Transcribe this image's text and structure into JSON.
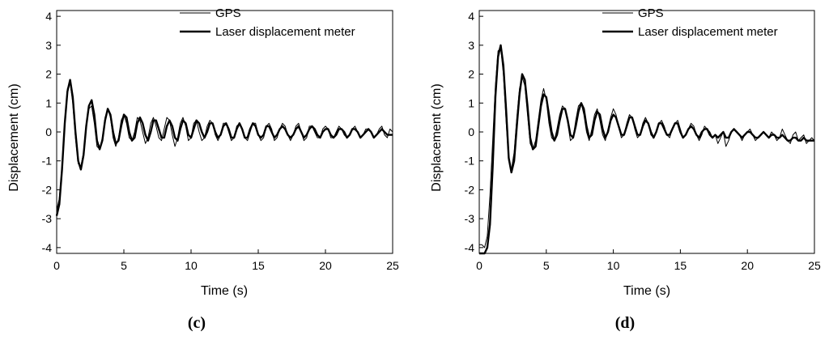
{
  "chart_data": [
    {
      "type": "line",
      "panel_label": "(c)",
      "xlabel": "Time (s)",
      "ylabel": "Displacement (cm)",
      "xlim": [
        0,
        25
      ],
      "ylim": [
        -4.2,
        4.2
      ],
      "xticks": [
        0,
        5,
        10,
        15,
        20,
        25
      ],
      "yticks": [
        -4,
        -3,
        -2,
        -1,
        0,
        1,
        2,
        3,
        4
      ],
      "grid": false,
      "legend_position": "top-right",
      "series": [
        {
          "name": "GPS",
          "style": "thin",
          "x": [
            0,
            0.2,
            0.4,
            0.6,
            0.8,
            1.0,
            1.2,
            1.4,
            1.6,
            1.8,
            2.0,
            2.2,
            2.4,
            2.6,
            2.8,
            3.0,
            3.2,
            3.4,
            3.6,
            3.8,
            4.0,
            4.2,
            4.4,
            4.6,
            4.8,
            5.0,
            5.2,
            5.4,
            5.6,
            5.8,
            6.0,
            6.2,
            6.4,
            6.6,
            6.8,
            7.0,
            7.2,
            7.4,
            7.6,
            7.8,
            8.0,
            8.2,
            8.4,
            8.6,
            8.8,
            9.0,
            9.2,
            9.4,
            9.6,
            9.8,
            10.0,
            10.2,
            10.4,
            10.6,
            10.8,
            11.0,
            11.2,
            11.4,
            11.6,
            11.8,
            12.0,
            12.2,
            12.4,
            12.6,
            12.8,
            13.0,
            13.2,
            13.4,
            13.6,
            13.8,
            14.0,
            14.2,
            14.4,
            14.6,
            14.8,
            15.0,
            15.2,
            15.4,
            15.6,
            15.8,
            16.0,
            16.2,
            16.4,
            16.6,
            16.8,
            17.0,
            17.2,
            17.4,
            17.6,
            17.8,
            18.0,
            18.2,
            18.4,
            18.6,
            18.8,
            19.0,
            19.2,
            19.4,
            19.6,
            19.8,
            20.0,
            20.2,
            20.4,
            20.6,
            20.8,
            21.0,
            21.2,
            21.4,
            21.6,
            21.8,
            22.0,
            22.2,
            22.4,
            22.6,
            22.8,
            23.0,
            23.2,
            23.4,
            23.6,
            23.8,
            24.0,
            24.2,
            24.4,
            24.6,
            24.8,
            25.0
          ],
          "y": [
            -2.7,
            -2.3,
            -1.2,
            0.4,
            1.5,
            1.7,
            1.0,
            -0.2,
            -1.1,
            -1.2,
            -0.7,
            0.2,
            0.8,
            0.9,
            0.3,
            -0.5,
            -0.6,
            -0.2,
            0.5,
            0.8,
            0.5,
            -0.2,
            -0.5,
            -0.2,
            0.4,
            0.6,
            0.3,
            -0.2,
            -0.3,
            0.0,
            0.5,
            0.4,
            0.0,
            -0.4,
            -0.2,
            0.3,
            0.5,
            0.2,
            -0.2,
            -0.3,
            0.1,
            0.5,
            0.4,
            -0.1,
            -0.5,
            -0.2,
            0.3,
            0.5,
            0.2,
            -0.3,
            -0.2,
            0.3,
            0.4,
            0.0,
            -0.3,
            -0.2,
            0.2,
            0.4,
            0.3,
            -0.1,
            -0.3,
            -0.1,
            0.3,
            0.3,
            0.0,
            -0.3,
            -0.2,
            0.2,
            0.3,
            0.1,
            -0.2,
            -0.3,
            0.0,
            0.3,
            0.3,
            -0.1,
            -0.3,
            -0.2,
            0.2,
            0.3,
            0.1,
            -0.3,
            -0.2,
            0.1,
            0.3,
            0.2,
            -0.1,
            -0.3,
            -0.1,
            0.2,
            0.3,
            0.0,
            -0.3,
            -0.2,
            0.2,
            0.2,
            0.0,
            -0.2,
            -0.2,
            0.1,
            0.2,
            0.1,
            -0.2,
            -0.2,
            0.0,
            0.2,
            0.1,
            -0.1,
            -0.2,
            -0.1,
            0.1,
            0.2,
            0.0,
            -0.2,
            -0.1,
            0.1,
            0.1,
            0.0,
            -0.2,
            -0.1,
            0.1,
            0.2,
            -0.1,
            -0.2,
            0.1,
            0.0
          ]
        },
        {
          "name": "Laser displacement meter",
          "style": "thick",
          "x": [
            0,
            0.2,
            0.4,
            0.6,
            0.8,
            1.0,
            1.2,
            1.4,
            1.6,
            1.8,
            2.0,
            2.2,
            2.4,
            2.6,
            2.8,
            3.0,
            3.2,
            3.4,
            3.6,
            3.8,
            4.0,
            4.2,
            4.4,
            4.6,
            4.8,
            5.0,
            5.2,
            5.4,
            5.6,
            5.8,
            6.0,
            6.2,
            6.4,
            6.6,
            6.8,
            7.0,
            7.2,
            7.4,
            7.6,
            7.8,
            8.0,
            8.2,
            8.4,
            8.6,
            8.8,
            9.0,
            9.2,
            9.4,
            9.6,
            9.8,
            10.0,
            10.2,
            10.4,
            10.6,
            10.8,
            11.0,
            11.2,
            11.4,
            11.6,
            11.8,
            12.0,
            12.2,
            12.4,
            12.6,
            12.8,
            13.0,
            13.2,
            13.4,
            13.6,
            13.8,
            14.0,
            14.2,
            14.4,
            14.6,
            14.8,
            15.0,
            15.2,
            15.4,
            15.6,
            15.8,
            16.0,
            16.2,
            16.4,
            16.6,
            16.8,
            17.0,
            17.2,
            17.4,
            17.6,
            17.8,
            18.0,
            18.2,
            18.4,
            18.6,
            18.8,
            19.0,
            19.2,
            19.4,
            19.6,
            19.8,
            20.0,
            20.2,
            20.4,
            20.6,
            20.8,
            21.0,
            21.2,
            21.4,
            21.6,
            21.8,
            22.0,
            22.2,
            22.4,
            22.6,
            22.8,
            23.0,
            23.2,
            23.4,
            23.6,
            23.8,
            24.0,
            24.2,
            24.4,
            24.6,
            24.8,
            25.0
          ],
          "y": [
            -2.9,
            -2.5,
            -1.3,
            0.3,
            1.4,
            1.8,
            1.2,
            0.0,
            -1.0,
            -1.3,
            -0.8,
            0.2,
            0.9,
            1.1,
            0.6,
            -0.3,
            -0.6,
            -0.3,
            0.4,
            0.8,
            0.6,
            0.0,
            -0.4,
            -0.3,
            0.2,
            0.6,
            0.5,
            0.0,
            -0.3,
            -0.2,
            0.3,
            0.5,
            0.3,
            -0.1,
            -0.3,
            0.0,
            0.4,
            0.4,
            0.1,
            -0.2,
            -0.2,
            0.2,
            0.4,
            0.2,
            -0.2,
            -0.3,
            0.1,
            0.4,
            0.3,
            -0.1,
            -0.2,
            0.1,
            0.4,
            0.3,
            0.0,
            -0.2,
            0.0,
            0.3,
            0.3,
            0.0,
            -0.2,
            -0.1,
            0.2,
            0.3,
            0.1,
            -0.2,
            -0.2,
            0.1,
            0.3,
            0.1,
            -0.2,
            -0.2,
            0.1,
            0.3,
            0.2,
            -0.1,
            -0.2,
            -0.1,
            0.2,
            0.2,
            0.0,
            -0.2,
            -0.1,
            0.1,
            0.2,
            0.1,
            -0.1,
            -0.2,
            -0.1,
            0.1,
            0.2,
            0.0,
            -0.2,
            -0.1,
            0.1,
            0.2,
            0.1,
            -0.1,
            -0.2,
            0.0,
            0.1,
            0.1,
            -0.1,
            -0.2,
            -0.1,
            0.1,
            0.1,
            0.0,
            -0.2,
            -0.1,
            0.1,
            0.1,
            0.0,
            -0.2,
            -0.1,
            0.0,
            0.1,
            0.0,
            -0.2,
            -0.1,
            0.0,
            0.1,
            0.0,
            -0.1,
            -0.1,
            -0.1
          ]
        }
      ]
    },
    {
      "type": "line",
      "panel_label": "(d)",
      "xlabel": "Time (s)",
      "ylabel": "Displacement (cm)",
      "xlim": [
        0,
        25
      ],
      "ylim": [
        -4.2,
        4.2
      ],
      "xticks": [
        0,
        5,
        10,
        15,
        20,
        25
      ],
      "yticks": [
        -4,
        -3,
        -2,
        -1,
        0,
        1,
        2,
        3,
        4
      ],
      "grid": false,
      "legend_position": "top-right",
      "series": [
        {
          "name": "GPS",
          "style": "thin",
          "x": [
            0,
            0.2,
            0.4,
            0.6,
            0.8,
            1.0,
            1.2,
            1.4,
            1.6,
            1.8,
            2.0,
            2.2,
            2.4,
            2.6,
            2.8,
            3.0,
            3.2,
            3.4,
            3.6,
            3.8,
            4.0,
            4.2,
            4.4,
            4.6,
            4.8,
            5.0,
            5.2,
            5.4,
            5.6,
            5.8,
            6.0,
            6.2,
            6.4,
            6.6,
            6.8,
            7.0,
            7.2,
            7.4,
            7.6,
            7.8,
            8.0,
            8.2,
            8.4,
            8.6,
            8.8,
            9.0,
            9.2,
            9.4,
            9.6,
            9.8,
            10.0,
            10.2,
            10.4,
            10.6,
            10.8,
            11.0,
            11.2,
            11.4,
            11.6,
            11.8,
            12.0,
            12.2,
            12.4,
            12.6,
            12.8,
            13.0,
            13.2,
            13.4,
            13.6,
            13.8,
            14.0,
            14.2,
            14.4,
            14.6,
            14.8,
            15.0,
            15.2,
            15.4,
            15.6,
            15.8,
            16.0,
            16.2,
            16.4,
            16.6,
            16.8,
            17.0,
            17.2,
            17.4,
            17.6,
            17.8,
            18.0,
            18.2,
            18.4,
            18.6,
            18.8,
            19.0,
            19.2,
            19.4,
            19.6,
            19.8,
            20.0,
            20.2,
            20.4,
            20.6,
            20.8,
            21.0,
            21.2,
            21.4,
            21.6,
            21.8,
            22.0,
            22.2,
            22.4,
            22.6,
            22.8,
            23.0,
            23.2,
            23.4,
            23.6,
            23.8,
            24.0,
            24.2,
            24.4,
            24.6,
            24.8,
            25.0
          ],
          "y": [
            -3.9,
            -3.9,
            -4.0,
            -3.6,
            -2.2,
            -0.3,
            1.6,
            2.8,
            2.9,
            2.0,
            0.4,
            -1.0,
            -1.3,
            -0.7,
            0.5,
            1.5,
            1.9,
            1.6,
            0.6,
            -0.4,
            -0.6,
            -0.3,
            0.4,
            1.1,
            1.5,
            1.1,
            0.3,
            -0.2,
            -0.3,
            0.1,
            0.6,
            0.9,
            0.8,
            0.3,
            -0.3,
            -0.2,
            0.4,
            0.9,
            1.0,
            0.6,
            0.0,
            -0.3,
            0.1,
            0.6,
            0.8,
            0.4,
            -0.1,
            -0.3,
            0.1,
            0.5,
            0.8,
            0.6,
            0.2,
            -0.2,
            -0.1,
            0.3,
            0.6,
            0.5,
            0.1,
            -0.2,
            -0.1,
            0.3,
            0.5,
            0.3,
            -0.1,
            -0.2,
            0.0,
            0.3,
            0.4,
            0.2,
            -0.1,
            -0.2,
            0.1,
            0.3,
            0.4,
            0.1,
            -0.2,
            -0.1,
            0.1,
            0.3,
            0.2,
            -0.1,
            -0.3,
            -0.1,
            0.2,
            0.1,
            0.0,
            -0.2,
            -0.1,
            -0.4,
            -0.2,
            0.0,
            -0.5,
            -0.3,
            0.0,
            0.1,
            0.0,
            -0.1,
            -0.3,
            -0.1,
            0.0,
            0.1,
            -0.1,
            -0.3,
            -0.2,
            -0.1,
            0.0,
            -0.1,
            -0.2,
            0.0,
            -0.1,
            -0.3,
            -0.2,
            0.1,
            -0.1,
            -0.3,
            -0.4,
            -0.1,
            0.0,
            -0.3,
            -0.2,
            -0.1,
            -0.4,
            -0.3,
            -0.2,
            -0.3
          ]
        },
        {
          "name": "Laser displacement meter",
          "style": "thick",
          "x": [
            0,
            0.2,
            0.4,
            0.6,
            0.8,
            1.0,
            1.2,
            1.4,
            1.6,
            1.8,
            2.0,
            2.2,
            2.4,
            2.6,
            2.8,
            3.0,
            3.2,
            3.4,
            3.6,
            3.8,
            4.0,
            4.2,
            4.4,
            4.6,
            4.8,
            5.0,
            5.2,
            5.4,
            5.6,
            5.8,
            6.0,
            6.2,
            6.4,
            6.6,
            6.8,
            7.0,
            7.2,
            7.4,
            7.6,
            7.8,
            8.0,
            8.2,
            8.4,
            8.6,
            8.8,
            9.0,
            9.2,
            9.4,
            9.6,
            9.8,
            10.0,
            10.2,
            10.4,
            10.6,
            10.8,
            11.0,
            11.2,
            11.4,
            11.6,
            11.8,
            12.0,
            12.2,
            12.4,
            12.6,
            12.8,
            13.0,
            13.2,
            13.4,
            13.6,
            13.8,
            14.0,
            14.2,
            14.4,
            14.6,
            14.8,
            15.0,
            15.2,
            15.4,
            15.6,
            15.8,
            16.0,
            16.2,
            16.4,
            16.6,
            16.8,
            17.0,
            17.2,
            17.4,
            17.6,
            17.8,
            18.0,
            18.2,
            18.4,
            18.6,
            18.8,
            19.0,
            19.2,
            19.4,
            19.6,
            19.8,
            20.0,
            20.2,
            20.4,
            20.6,
            20.8,
            21.0,
            21.2,
            21.4,
            21.6,
            21.8,
            22.0,
            22.2,
            22.4,
            22.6,
            22.8,
            23.0,
            23.2,
            23.4,
            23.6,
            23.8,
            24.0,
            24.2,
            24.4,
            24.6,
            24.8,
            25.0
          ],
          "y": [
            -4.2,
            -4.2,
            -4.2,
            -4.0,
            -3.2,
            -1.2,
            1.2,
            2.6,
            3.0,
            2.3,
            0.8,
            -0.9,
            -1.4,
            -1.0,
            0.2,
            1.3,
            2.0,
            1.8,
            0.9,
            -0.2,
            -0.6,
            -0.5,
            0.2,
            0.9,
            1.3,
            1.2,
            0.6,
            0.0,
            -0.3,
            -0.1,
            0.4,
            0.8,
            0.8,
            0.4,
            -0.1,
            -0.2,
            0.2,
            0.7,
            1.0,
            0.8,
            0.2,
            -0.2,
            -0.1,
            0.4,
            0.7,
            0.6,
            0.1,
            -0.2,
            0.0,
            0.4,
            0.6,
            0.5,
            0.2,
            -0.1,
            -0.1,
            0.2,
            0.5,
            0.5,
            0.2,
            -0.1,
            -0.1,
            0.2,
            0.4,
            0.3,
            0.0,
            -0.2,
            0.0,
            0.3,
            0.3,
            0.1,
            -0.1,
            -0.1,
            0.1,
            0.3,
            0.3,
            0.0,
            -0.2,
            -0.1,
            0.1,
            0.2,
            0.1,
            -0.1,
            -0.2,
            0.0,
            0.1,
            0.1,
            -0.1,
            -0.2,
            -0.1,
            -0.2,
            -0.1,
            0.0,
            -0.2,
            -0.2,
            0.0,
            0.1,
            0.0,
            -0.1,
            -0.2,
            -0.1,
            0.0,
            0.0,
            -0.1,
            -0.2,
            -0.2,
            -0.1,
            0.0,
            -0.1,
            -0.2,
            -0.1,
            -0.1,
            -0.2,
            -0.2,
            -0.1,
            -0.2,
            -0.3,
            -0.3,
            -0.2,
            -0.2,
            -0.3,
            -0.3,
            -0.2,
            -0.3,
            -0.3,
            -0.3,
            -0.3
          ]
        }
      ]
    }
  ]
}
